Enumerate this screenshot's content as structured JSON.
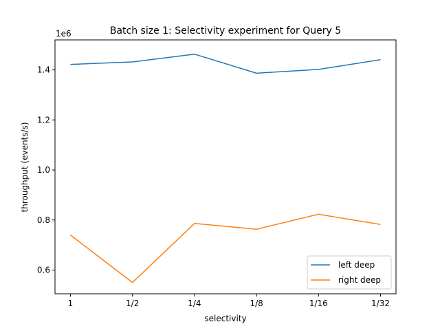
{
  "chart_data": {
    "type": "line",
    "title": "Batch size 1: Selectivity experiment for Query 5",
    "xlabel": "selectivity",
    "ylabel": "throughput (events/s)",
    "y_offset_label": "1e6",
    "categories": [
      "1",
      "1/2",
      "1/4",
      "1/8",
      "1/16",
      "1/32"
    ],
    "yticks": [
      0.6,
      0.8,
      1.0,
      1.2,
      1.4
    ],
    "ytick_labels": [
      "0.6",
      "0.8",
      "1.0",
      "1.2",
      "1.4"
    ],
    "ylim": [
      0.505,
      1.52
    ],
    "legend_position": "lower-right",
    "grid": false,
    "series": [
      {
        "name": "left deep",
        "color": "#1f77b4",
        "values": [
          1.422,
          1.432,
          1.463,
          1.387,
          1.402,
          1.441
        ]
      },
      {
        "name": "right deep",
        "color": "#ff7f0e",
        "values": [
          0.74,
          0.55,
          0.786,
          0.763,
          0.823,
          0.782
        ]
      }
    ]
  }
}
